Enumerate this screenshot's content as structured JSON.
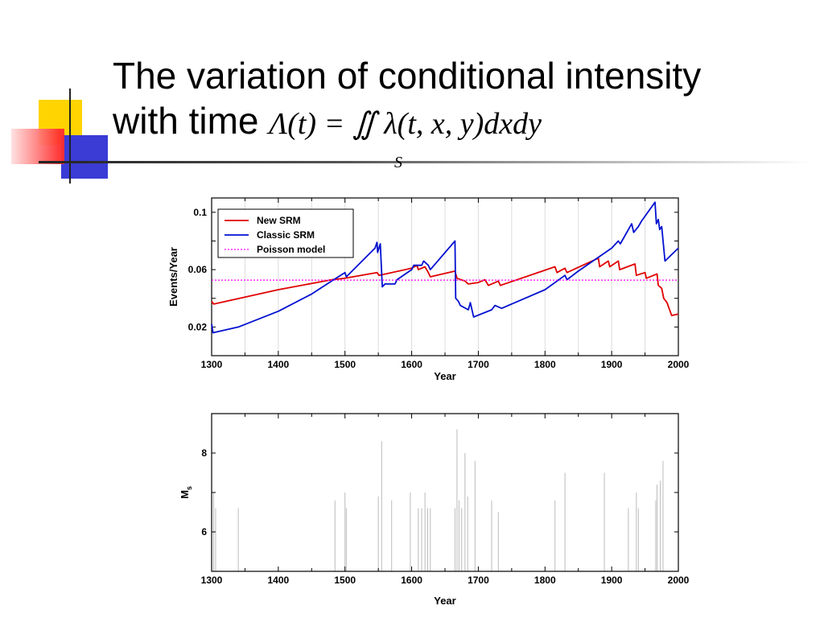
{
  "title": {
    "line1": "The variation of conditional intensity",
    "line2_text": "with time",
    "formula": "Λ(t) = ∬ λ(t, x, y)dxdy",
    "formula_sub": "S"
  },
  "colors": {
    "new_srm": "#e00000",
    "classic_srm": "#0010d0",
    "poisson": "#ff00ff",
    "deco_yellow": "#ffd700",
    "deco_red": "#ff4040",
    "deco_blue": "#3a3ad0"
  },
  "chart_data": [
    {
      "type": "line",
      "xlabel": "Year",
      "ylabel": "Events/Year",
      "xlim": [
        1300,
        2000
      ],
      "ylim": [
        0.0,
        0.11
      ],
      "xticks": [
        1300,
        1400,
        1500,
        1600,
        1700,
        1800,
        1900,
        2000
      ],
      "yticks": [
        0.02,
        0.06,
        0.1
      ],
      "ytick_labels": [
        "0.02",
        "0.06",
        "0.1"
      ],
      "grid": "vertical",
      "legend": "top-left",
      "series": [
        {
          "name": "New SRM",
          "color": "#e00000",
          "x": [
            1300,
            1303,
            1400,
            1480,
            1500,
            1548,
            1551,
            1600,
            1608,
            1610,
            1620,
            1625,
            1628,
            1665,
            1668,
            1680,
            1685,
            1700,
            1710,
            1715,
            1730,
            1733,
            1815,
            1818,
            1830,
            1833,
            1880,
            1882,
            1895,
            1897,
            1910,
            1912,
            1935,
            1937,
            1950,
            1952,
            1968,
            1970,
            1975,
            1978,
            1983,
            1990,
            2000
          ],
          "values": [
            0.038,
            0.036,
            0.046,
            0.053,
            0.054,
            0.058,
            0.056,
            0.061,
            0.063,
            0.06,
            0.062,
            0.058,
            0.055,
            0.059,
            0.054,
            0.052,
            0.05,
            0.051,
            0.053,
            0.049,
            0.052,
            0.049,
            0.062,
            0.058,
            0.061,
            0.058,
            0.068,
            0.062,
            0.066,
            0.062,
            0.066,
            0.06,
            0.064,
            0.056,
            0.058,
            0.054,
            0.057,
            0.049,
            0.047,
            0.04,
            0.037,
            0.028,
            0.029
          ]
        },
        {
          "name": "Classic SRM",
          "color": "#0010d0",
          "x": [
            1300,
            1302,
            1340,
            1400,
            1450,
            1480,
            1500,
            1502,
            1545,
            1548,
            1549,
            1553,
            1556,
            1560,
            1575,
            1578,
            1600,
            1603,
            1615,
            1618,
            1625,
            1628,
            1665,
            1666,
            1670,
            1673,
            1685,
            1688,
            1690,
            1693,
            1720,
            1725,
            1735,
            1800,
            1830,
            1833,
            1850,
            1900,
            1910,
            1913,
            1930,
            1933,
            1940,
            1945,
            1965,
            1967,
            1970,
            1972,
            1975,
            1980,
            2000
          ],
          "values": [
            0.022,
            0.016,
            0.02,
            0.031,
            0.043,
            0.052,
            0.058,
            0.055,
            0.075,
            0.079,
            0.072,
            0.078,
            0.048,
            0.05,
            0.05,
            0.053,
            0.06,
            0.063,
            0.063,
            0.066,
            0.063,
            0.06,
            0.08,
            0.04,
            0.038,
            0.035,
            0.032,
            0.037,
            0.033,
            0.027,
            0.032,
            0.035,
            0.033,
            0.046,
            0.056,
            0.053,
            0.059,
            0.075,
            0.08,
            0.078,
            0.092,
            0.086,
            0.09,
            0.094,
            0.107,
            0.092,
            0.095,
            0.088,
            0.09,
            0.066,
            0.075
          ]
        },
        {
          "name": "Poisson model",
          "color": "#ff00ff",
          "x": [
            1300,
            2000
          ],
          "values": [
            0.0527,
            0.0527
          ]
        }
      ]
    },
    {
      "type": "bar",
      "xlabel": "Year",
      "ylabel": "M",
      "ylabel_subscript": "s",
      "xlim": [
        1300,
        2000
      ],
      "ylim": [
        5.0,
        9.0
      ],
      "xticks": [
        1300,
        1400,
        1500,
        1600,
        1700,
        1800,
        1900,
        2000
      ],
      "yticks": [
        6,
        8
      ],
      "color": "#bbbbbb",
      "x": [
        1303,
        1306,
        1340,
        1485,
        1500,
        1502,
        1550,
        1555,
        1570,
        1598,
        1610,
        1615,
        1620,
        1624,
        1628,
        1665,
        1668,
        1671,
        1675,
        1680,
        1684,
        1695,
        1720,
        1730,
        1815,
        1830,
        1889,
        1925,
        1937,
        1940,
        1966,
        1968,
        1973,
        1977
      ],
      "values": [
        7.0,
        6.6,
        6.6,
        6.8,
        7.0,
        6.6,
        6.9,
        8.3,
        6.8,
        7.0,
        6.6,
        6.6,
        7.0,
        6.6,
        6.6,
        6.6,
        8.6,
        6.8,
        6.6,
        8.0,
        6.9,
        7.8,
        6.8,
        6.5,
        6.8,
        7.5,
        7.5,
        6.6,
        7.0,
        6.6,
        6.8,
        7.2,
        7.3,
        7.8
      ]
    }
  ]
}
